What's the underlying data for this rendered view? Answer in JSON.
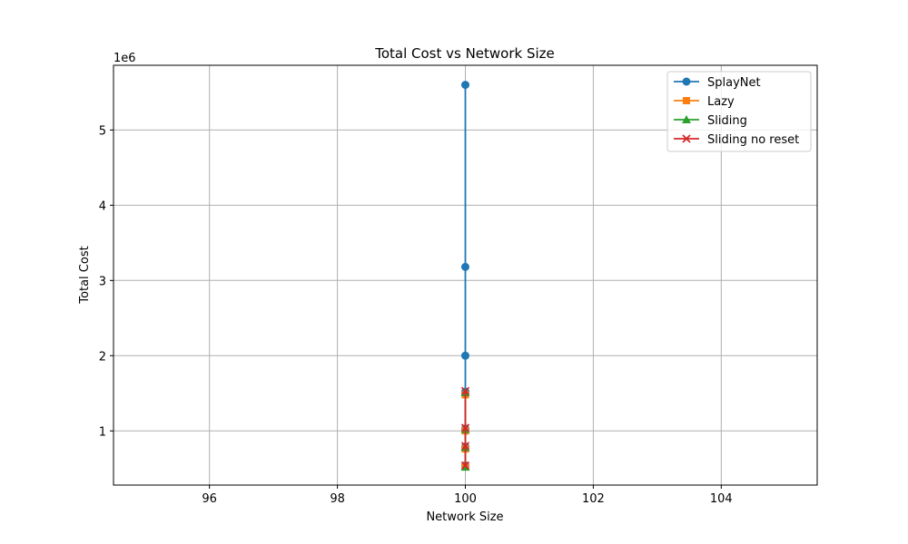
{
  "chart_data": {
    "type": "line",
    "title": "Total Cost vs Network Size",
    "xlabel": "Network Size",
    "ylabel": "Total Cost",
    "y_offset_label": "1e6",
    "y_scale": 1000000,
    "xlim": [
      94.5,
      105.5
    ],
    "ylim": [
      280000,
      5860000
    ],
    "xticks": [
      96,
      98,
      100,
      102,
      104
    ],
    "yticks": [
      1,
      2,
      3,
      4,
      5
    ],
    "grid": true,
    "legend_position": "top-right",
    "series": [
      {
        "name": "SplayNet",
        "color": "#1f77b4",
        "marker": "circle",
        "x": [
          100,
          100,
          100,
          100,
          100,
          100,
          100
        ],
        "y": [
          5600000,
          3180000,
          2000000,
          1520000,
          1030000,
          790000,
          540000
        ]
      },
      {
        "name": "Lazy",
        "color": "#ff7f0e",
        "marker": "square",
        "x": [
          100,
          100,
          100,
          100
        ],
        "y": [
          1480000,
          1000000,
          760000,
          530000
        ]
      },
      {
        "name": "Sliding",
        "color": "#2ca02c",
        "marker": "triangle",
        "x": [
          100,
          100,
          100,
          100
        ],
        "y": [
          1510000,
          1020000,
          780000,
          520000
        ]
      },
      {
        "name": "Sliding no reset",
        "color": "#d62728",
        "marker": "x",
        "x": [
          100,
          100,
          100,
          100
        ],
        "y": [
          1530000,
          1040000,
          800000,
          540000
        ]
      }
    ]
  }
}
